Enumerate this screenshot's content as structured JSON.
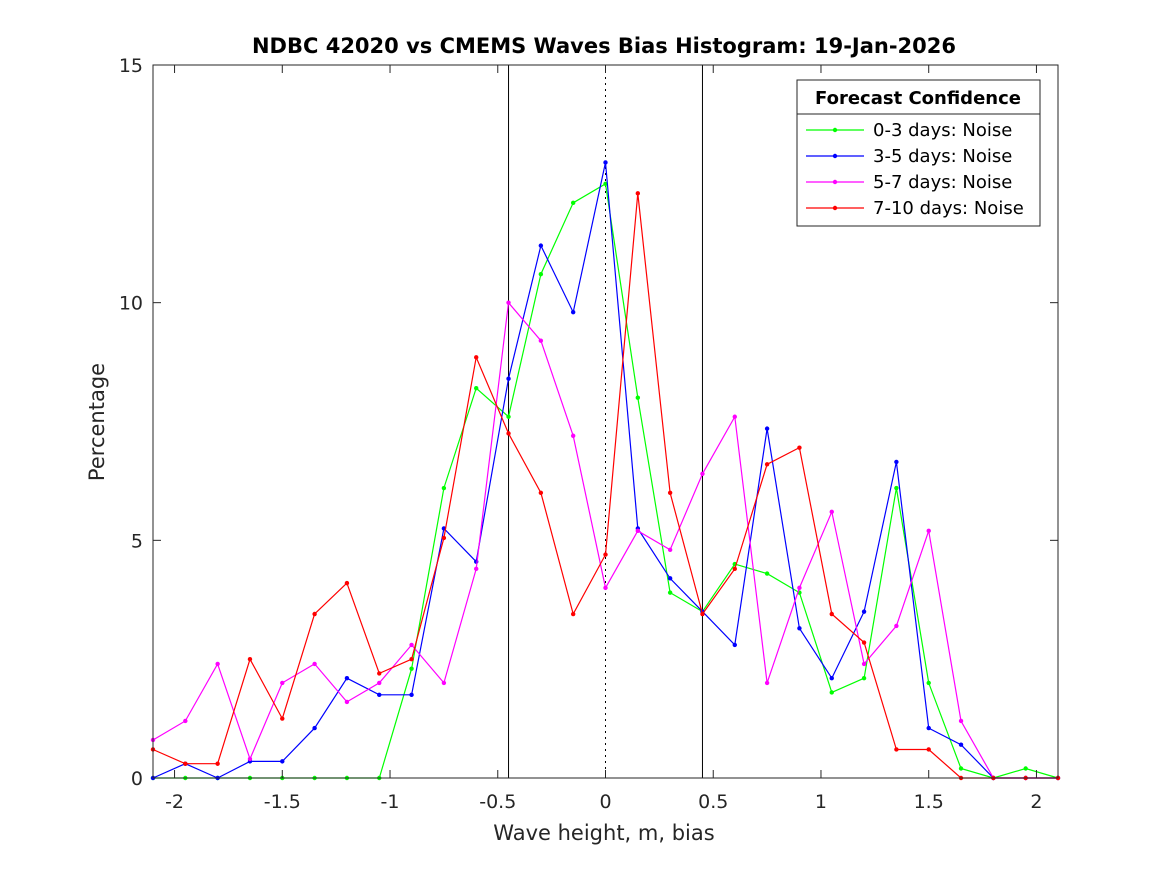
{
  "chart_data": {
    "type": "line",
    "title": "NDBC 42020 vs CMEMS Waves Bias Histogram: 19-Jan-2026",
    "xlabel": "Wave height, m, bias",
    "ylabel": "Percentage",
    "xlim": [
      -2.1,
      2.1
    ],
    "ylim": [
      0,
      15
    ],
    "xticks": [
      -2,
      -1.5,
      -1,
      -0.5,
      0,
      0.5,
      1,
      1.5,
      2
    ],
    "xtick_labels": [
      "-2",
      "-1.5",
      "-1",
      "-0.5",
      "0",
      "0.5",
      "1",
      "1.5",
      "2"
    ],
    "yticks": [
      0,
      5,
      10,
      15
    ],
    "ytick_labels": [
      "0",
      "5",
      "10",
      "15"
    ],
    "vertical_lines": [
      {
        "x": -0.45,
        "style": "solid"
      },
      {
        "x": 0,
        "style": "dotted"
      },
      {
        "x": 0.45,
        "style": "solid"
      }
    ],
    "legend": {
      "title": "Forecast Confidence",
      "position": "top-right"
    },
    "x": [
      -2.1,
      -1.95,
      -1.8,
      -1.65,
      -1.5,
      -1.35,
      -1.2,
      -1.05,
      -0.9,
      -0.75,
      -0.6,
      -0.45,
      -0.3,
      -0.15,
      0,
      0.15,
      0.3,
      0.45,
      0.6,
      0.75,
      0.9,
      1.05,
      1.2,
      1.35,
      1.5,
      1.65,
      1.8,
      1.95,
      2.1
    ],
    "series": [
      {
        "name": "0-3 days: Noise",
        "color": "#00ff00",
        "values": [
          0,
          0,
          0,
          0,
          0,
          0,
          0,
          0,
          2.3,
          6.1,
          8.2,
          7.6,
          10.6,
          12.1,
          12.5,
          8.0,
          3.9,
          3.5,
          4.5,
          4.3,
          3.9,
          1.8,
          2.1,
          6.1,
          2.0,
          0.2,
          0,
          0.2,
          0
        ]
      },
      {
        "name": "3-5 days: Noise",
        "color": "#0000ff",
        "values": [
          0,
          0.3,
          0,
          0.35,
          0.35,
          1.05,
          2.1,
          1.75,
          1.75,
          5.25,
          4.55,
          8.4,
          11.2,
          9.8,
          12.95,
          5.25,
          4.2,
          3.5,
          2.8,
          7.35,
          3.15,
          2.1,
          3.5,
          6.65,
          1.05,
          0.7,
          0,
          0,
          0
        ]
      },
      {
        "name": "5-7 days: Noise",
        "color": "#ff00ff",
        "values": [
          0.8,
          1.2,
          2.4,
          0.4,
          2.0,
          2.4,
          1.6,
          2.0,
          2.8,
          2.0,
          4.4,
          10.0,
          9.2,
          7.2,
          4.0,
          5.2,
          4.8,
          6.4,
          7.6,
          2.0,
          4.0,
          5.6,
          2.4,
          3.2,
          5.2,
          1.2,
          0,
          0,
          0
        ]
      },
      {
        "name": "7-10 days: Noise",
        "color": "#ff0000",
        "values": [
          0.6,
          0.3,
          0.3,
          2.5,
          1.25,
          3.45,
          4.1,
          2.2,
          2.5,
          5.05,
          8.85,
          7.25,
          6.0,
          3.45,
          4.7,
          12.3,
          6.0,
          3.45,
          4.4,
          6.6,
          6.95,
          3.45,
          2.85,
          0.6,
          0.6,
          0,
          0,
          0,
          0
        ]
      }
    ]
  }
}
